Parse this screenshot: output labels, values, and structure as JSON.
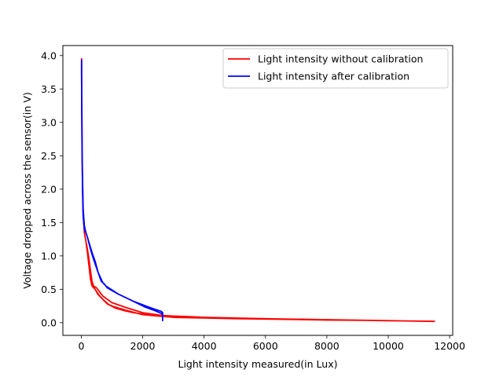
{
  "chart_data": {
    "type": "line",
    "title": "",
    "xlabel": "Light intensity measured(in Lux)",
    "ylabel": "Voltage dropped across the sensor(in V)",
    "xlim": [
      -600,
      12100
    ],
    "ylim": [
      -0.19,
      4.15
    ],
    "xticks": [
      0,
      2000,
      4000,
      6000,
      8000,
      10000,
      12000
    ],
    "xtick_labels": [
      "0",
      "2000",
      "4000",
      "6000",
      "8000",
      "10000",
      "12000"
    ],
    "yticks": [
      0.0,
      0.5,
      1.0,
      1.5,
      2.0,
      2.5,
      3.0,
      3.5,
      4.0
    ],
    "ytick_labels": [
      "0.0",
      "0.5",
      "1.0",
      "1.5",
      "2.0",
      "2.5",
      "3.0",
      "3.5",
      "4.0"
    ],
    "grid": false,
    "legend": "top-right",
    "series": [
      {
        "name": "Light intensity without calibration",
        "color": "#ff0000",
        "x": [
          10,
          10,
          20,
          25,
          40,
          60,
          100,
          150,
          180,
          200,
          260,
          320,
          380,
          450,
          550,
          700,
          900,
          1100,
          1400,
          1700,
          2000,
          2200,
          2600,
          3000,
          3500,
          4000,
          5000,
          6000,
          7500,
          9400,
          8000,
          6000,
          5000,
          3500,
          3000,
          2500,
          2000,
          1500,
          1200,
          1000,
          850,
          700,
          600,
          450,
          350,
          300,
          250,
          200,
          170,
          150,
          200,
          250,
          300,
          350,
          400,
          500,
          700,
          1000,
          1500,
          2000,
          2600,
          2700,
          3000,
          4000,
          6000,
          8000,
          10000,
          11500
        ],
        "y": [
          3.95,
          3.7,
          3.05,
          2.6,
          2.05,
          1.65,
          1.35,
          1.22,
          1.15,
          1.05,
          0.85,
          0.65,
          0.55,
          0.5,
          0.42,
          0.35,
          0.27,
          0.22,
          0.18,
          0.15,
          0.13,
          0.12,
          0.11,
          0.1,
          0.09,
          0.08,
          0.07,
          0.055,
          0.045,
          0.035,
          0.04,
          0.055,
          0.06,
          0.075,
          0.08,
          0.1,
          0.12,
          0.18,
          0.22,
          0.25,
          0.28,
          0.35,
          0.4,
          0.5,
          0.55,
          0.65,
          0.85,
          1.05,
          1.15,
          1.22,
          1.1,
          0.95,
          0.78,
          0.62,
          0.55,
          0.52,
          0.4,
          0.3,
          0.22,
          0.15,
          0.11,
          0.1,
          0.09,
          0.08,
          0.06,
          0.045,
          0.03,
          0.02
        ]
      },
      {
        "name": "Light intensity after calibration",
        "color": "#0000ff",
        "x": [
          10,
          10,
          15,
          20,
          30,
          40,
          60,
          100,
          150,
          200,
          300,
          400,
          550,
          700,
          800,
          1200,
          1700,
          2100,
          2400,
          2600,
          2650,
          2650,
          2650,
          2600,
          2400,
          2100,
          1700,
          1200,
          850,
          750,
          650,
          550,
          450,
          350,
          250,
          200,
          150,
          100,
          60,
          30,
          15,
          10
        ],
        "y": [
          3.93,
          3.72,
          3.3,
          3.0,
          2.5,
          2.0,
          1.6,
          1.4,
          1.35,
          1.28,
          1.1,
          0.95,
          0.75,
          0.6,
          0.55,
          0.43,
          0.32,
          0.25,
          0.2,
          0.17,
          0.15,
          0.03,
          0.12,
          0.14,
          0.18,
          0.23,
          0.32,
          0.43,
          0.52,
          0.58,
          0.62,
          0.75,
          0.92,
          1.05,
          1.2,
          1.28,
          1.35,
          1.45,
          1.7,
          2.4,
          3.2,
          3.9
        ]
      }
    ]
  }
}
